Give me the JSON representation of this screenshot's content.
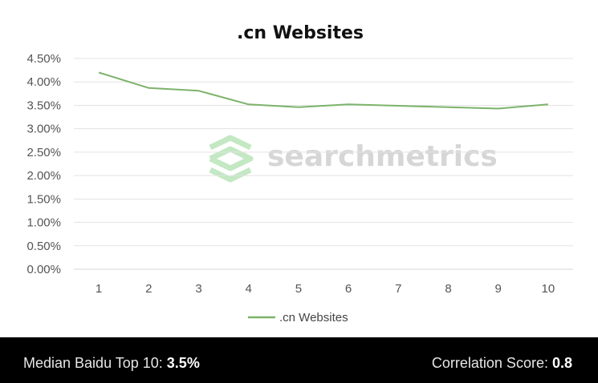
{
  "chart_data": {
    "type": "line",
    "title": ".cn Websites",
    "x": [
      1,
      2,
      3,
      4,
      5,
      6,
      7,
      8,
      9,
      10
    ],
    "series": [
      {
        "name": ".cn Websites",
        "values": [
          4.2,
          3.87,
          3.81,
          3.52,
          3.46,
          3.52,
          3.49,
          3.46,
          3.43,
          3.52
        ],
        "color": "#7cb36a"
      }
    ],
    "y_tick_labels": [
      "0.00%",
      "0.50%",
      "1.00%",
      "1.50%",
      "2.00%",
      "2.50%",
      "3.00%",
      "3.50%",
      "4.00%",
      "4.50%"
    ],
    "ylim": [
      0,
      4.5
    ],
    "xlabel": "",
    "ylabel": "",
    "grid": true,
    "legend": "bottom"
  },
  "watermark": {
    "text": "searchmetrics",
    "color": "#c9c9c9",
    "logo_color": "#bde6bd"
  },
  "footer": {
    "left_label": "Median Baidu Top 10: ",
    "left_value": "3.5%",
    "right_label": "Correlation Score: ",
    "right_value": "0.8",
    "background": "#000000"
  }
}
